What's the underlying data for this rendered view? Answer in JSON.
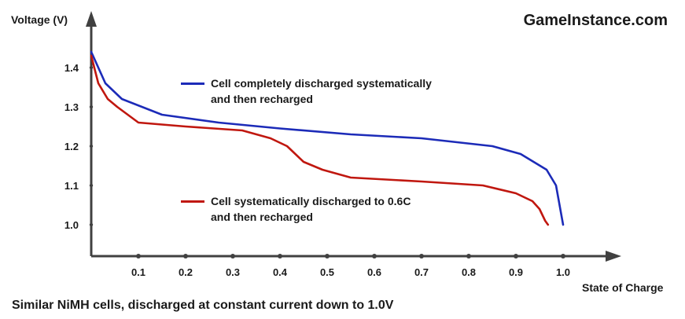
{
  "site": "GameInstance.com",
  "caption": "Similar NiMH cells, discharged at constant current down to 1.0V",
  "chart_data": {
    "type": "line",
    "xlabel": "State of Charge",
    "ylabel": "Voltage (V)",
    "xlim": [
      0,
      1.12
    ],
    "ylim": [
      0.92,
      1.54
    ],
    "x_ticks": [
      "0.1",
      "0.2",
      "0.3",
      "0.4",
      "0.5",
      "0.6",
      "0.7",
      "0.8",
      "0.9",
      "1.0"
    ],
    "y_ticks": [
      "1.0",
      "1.1",
      "1.2",
      "1.3",
      "1.4"
    ],
    "grid": false,
    "legend": "inside, stacked",
    "colors": {
      "series_1": "#1c2bb8",
      "series_2": "#c0170f",
      "axis": "#404040"
    },
    "series": [
      {
        "name": "Cell completely discharged systematically and then recharged",
        "name_lines": [
          "Cell completely discharged systematically",
          "and then recharged"
        ],
        "x": [
          0.0,
          0.03,
          0.065,
          0.15,
          0.27,
          0.4,
          0.55,
          0.7,
          0.85,
          0.91,
          0.965,
          0.985,
          1.0
        ],
        "y": [
          1.44,
          1.36,
          1.32,
          1.28,
          1.26,
          1.245,
          1.23,
          1.22,
          1.2,
          1.18,
          1.14,
          1.1,
          1.0
        ]
      },
      {
        "name": "Cell systematically discharged to 0.6C and then recharged",
        "name_lines": [
          "Cell systematically discharged to 0.6C",
          "and then recharged"
        ],
        "x": [
          0.0,
          0.015,
          0.035,
          0.055,
          0.1,
          0.2,
          0.32,
          0.38,
          0.415,
          0.45,
          0.49,
          0.55,
          0.7,
          0.83,
          0.9,
          0.935,
          0.95,
          0.962,
          0.968
        ],
        "y": [
          1.43,
          1.36,
          1.32,
          1.3,
          1.26,
          1.25,
          1.24,
          1.22,
          1.2,
          1.16,
          1.14,
          1.12,
          1.11,
          1.1,
          1.08,
          1.06,
          1.04,
          1.01,
          1.0
        ]
      }
    ]
  }
}
